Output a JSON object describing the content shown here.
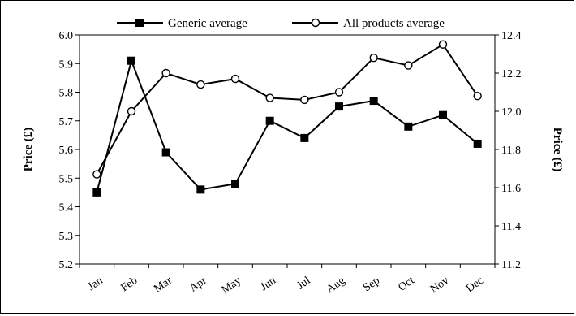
{
  "chart_data": {
    "type": "line",
    "categories": [
      "Jan",
      "Feb",
      "Mar",
      "Apr",
      "May",
      "Jun",
      "Jul",
      "Aug",
      "Sep",
      "Oct",
      "Nov",
      "Dec"
    ],
    "ylabel": "Price (£)",
    "y2label": "Price (£)",
    "ylim": [
      5.2,
      6.0
    ],
    "y2lim": [
      11.2,
      12.4
    ],
    "yticks": [
      "5.2",
      "5.3",
      "5.4",
      "5.5",
      "5.6",
      "5.7",
      "5.8",
      "5.9",
      "6.0"
    ],
    "y2ticks": [
      "11.2",
      "11.4",
      "11.6",
      "11.8",
      "12.0",
      "12.2",
      "12.4"
    ],
    "legend_position": "top",
    "series": [
      {
        "name": "Generic average",
        "axis": "left",
        "marker": "filled-square",
        "values": [
          5.45,
          5.91,
          5.59,
          5.46,
          5.48,
          5.7,
          5.64,
          5.75,
          5.77,
          5.68,
          5.72,
          5.62
        ]
      },
      {
        "name": "All products average",
        "axis": "right",
        "marker": "open-circle",
        "values": [
          11.67,
          12.0,
          12.2,
          12.14,
          12.17,
          12.07,
          12.06,
          12.1,
          12.28,
          12.24,
          12.35,
          12.08
        ]
      }
    ],
    "colors": {
      "line": "#000000",
      "background": "#ffffff"
    }
  }
}
